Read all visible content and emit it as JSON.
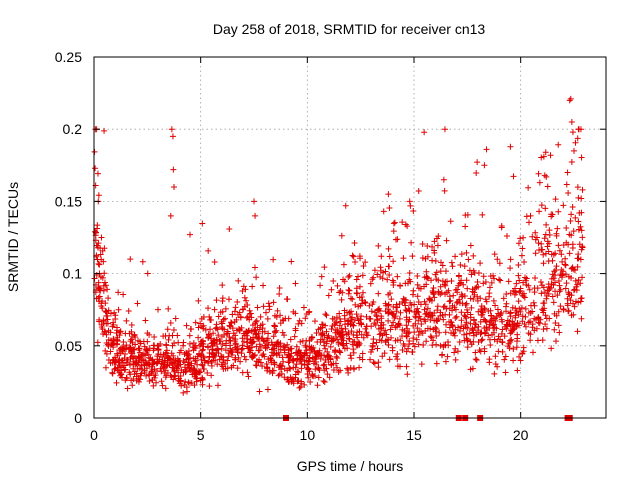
{
  "chart_data": {
    "type": "scatter",
    "title": "Day 258 of 2018, SRMTID for receiver cn13",
    "xlabel": "GPS time / hours",
    "ylabel": "SRMTID / TECUs",
    "xlim": [
      0,
      24
    ],
    "ylim": [
      0,
      0.25
    ],
    "xticks": [
      0,
      5,
      10,
      15,
      20
    ],
    "xtick_labels": [
      "0",
      "5",
      "10",
      "15",
      "20"
    ],
    "yticks": [
      0,
      0.05,
      0.1,
      0.15,
      0.2,
      0.25
    ],
    "ytick_labels": [
      "0",
      "0.05",
      "0.1",
      "0.15",
      "0.2",
      "0.25"
    ],
    "grid": true,
    "marker": "plus",
    "color": "#e00000",
    "zero_markers_x": [
      9.0,
      17.1,
      17.4,
      18.1,
      22.2,
      22.3
    ],
    "series": [
      {
        "name": "SRMTID",
        "trend_x": [
          0.0,
          0.1,
          0.3,
          0.6,
          1.0,
          2.0,
          3.0,
          3.7,
          4.5,
          5.5,
          7.0,
          8.5,
          9.5,
          10.5,
          12.0,
          13.5,
          15.0,
          16.5,
          18.0,
          19.0,
          20.0,
          21.0,
          22.0,
          22.5,
          23.0
        ],
        "trend_y": [
          0.16,
          0.12,
          0.09,
          0.06,
          0.045,
          0.038,
          0.036,
          0.04,
          0.032,
          0.05,
          0.055,
          0.05,
          0.04,
          0.045,
          0.062,
          0.065,
          0.07,
          0.075,
          0.07,
          0.06,
          0.07,
          0.09,
          0.095,
          0.11,
          0.115
        ],
        "spikes": [
          {
            "x": 0.05,
            "y": 0.173
          },
          {
            "x": 0.2,
            "y": 0.15
          },
          {
            "x": 0.35,
            "y": 0.125
          },
          {
            "x": 1.7,
            "y": 0.11
          },
          {
            "x": 3.65,
            "y": 0.2
          },
          {
            "x": 3.7,
            "y": 0.195
          },
          {
            "x": 3.72,
            "y": 0.172
          },
          {
            "x": 3.75,
            "y": 0.16
          },
          {
            "x": 3.6,
            "y": 0.14
          },
          {
            "x": 4.5,
            "y": 0.127
          },
          {
            "x": 7.5,
            "y": 0.15
          },
          {
            "x": 7.55,
            "y": 0.14
          },
          {
            "x": 8.7,
            "y": 0.09
          },
          {
            "x": 13.8,
            "y": 0.155
          },
          {
            "x": 14.8,
            "y": 0.15
          },
          {
            "x": 16.4,
            "y": 0.165
          },
          {
            "x": 18.3,
            "y": 0.175
          },
          {
            "x": 18.4,
            "y": 0.186
          },
          {
            "x": 21.4,
            "y": 0.182
          },
          {
            "x": 21.2,
            "y": 0.167
          },
          {
            "x": 20.9,
            "y": 0.163
          },
          {
            "x": 22.3,
            "y": 0.22
          },
          {
            "x": 22.35,
            "y": 0.221
          },
          {
            "x": 22.4,
            "y": 0.205
          },
          {
            "x": 22.45,
            "y": 0.198
          },
          {
            "x": 22.5,
            "y": 0.185
          },
          {
            "x": 22.2,
            "y": 0.17
          },
          {
            "x": 22.9,
            "y": 0.158
          }
        ]
      }
    ]
  }
}
